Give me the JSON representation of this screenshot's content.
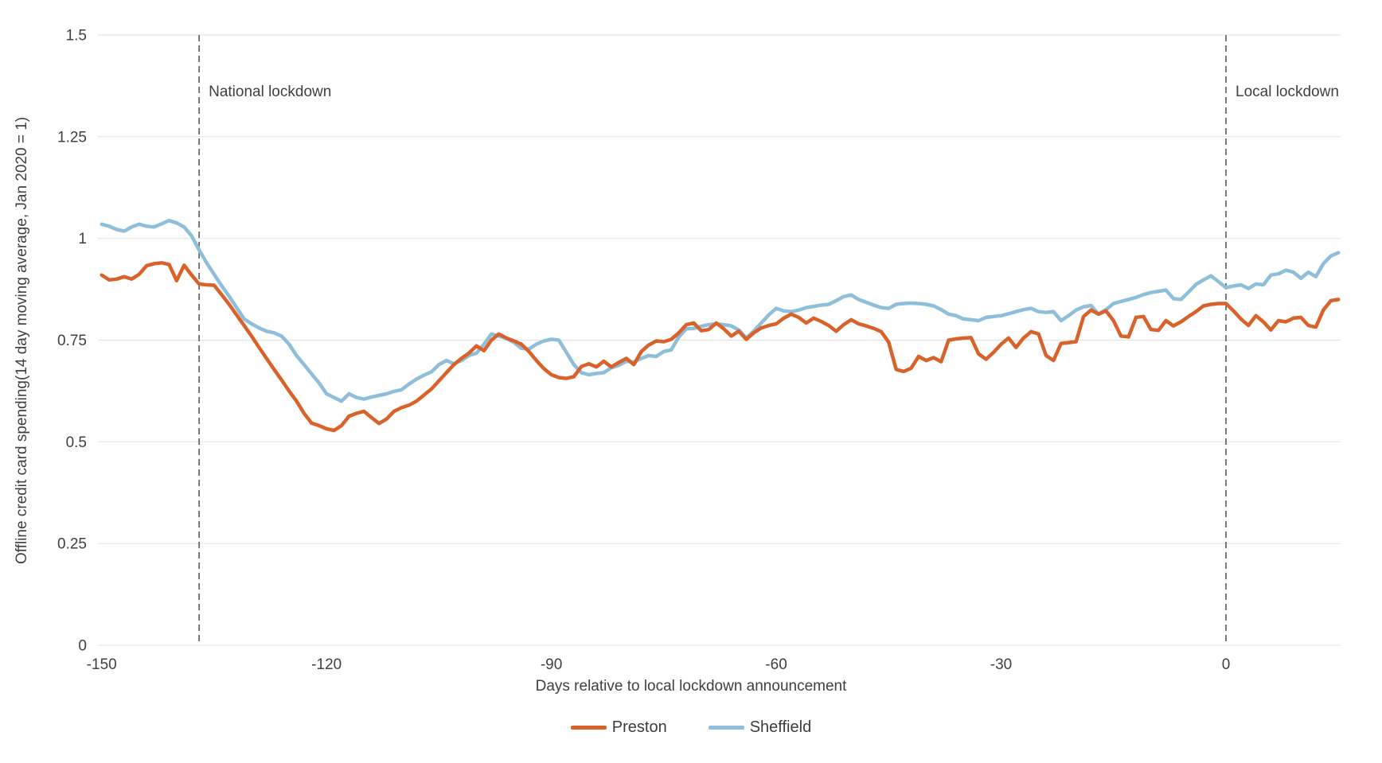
{
  "colors": {
    "preston": "#d9622b",
    "sheffield": "#8ebeda",
    "grid": "#e2e2e2",
    "text": "#404040",
    "annotation_line": "#4d4d4d",
    "background": "#ffffff"
  },
  "chart_data": {
    "type": "line",
    "title": "",
    "xlabel": "Days relative to local lockdown announcement",
    "ylabel_line1": "Offline credit card spending",
    "ylabel_line2": "(14 day moving average, Jan 2020 = 1)",
    "grid": "horizontal",
    "legend_position": "bottom",
    "xlim": [
      -150.5,
      15.3
    ],
    "ylim": [
      0,
      1.5
    ],
    "x_ticks": [
      -150,
      -120,
      -90,
      -60,
      -30,
      0
    ],
    "y_ticks": [
      0,
      0.25,
      0.5,
      0.75,
      1,
      1.25,
      1.5
    ],
    "y_tick_labels": [
      "0",
      "0.25",
      "0.5",
      "0.75",
      "1",
      "1.25",
      "1.5"
    ],
    "x_start": -150,
    "x_step": 1,
    "annotations": [
      {
        "label": "National lockdown",
        "x": -137
      },
      {
        "label": "Local lockdown",
        "x": 0
      }
    ],
    "series": [
      {
        "name": "Preston",
        "color": "#d9622b",
        "values": [
          0.91,
          0.898,
          0.9,
          0.906,
          0.9,
          0.912,
          0.933,
          0.938,
          0.94,
          0.936,
          0.896,
          0.934,
          0.91,
          0.888,
          0.886,
          0.885,
          0.862,
          0.838,
          0.812,
          0.786,
          0.76,
          0.732,
          0.705,
          0.678,
          0.652,
          0.625,
          0.6,
          0.57,
          0.546,
          0.54,
          0.532,
          0.528,
          0.54,
          0.563,
          0.57,
          0.575,
          0.56,
          0.545,
          0.556,
          0.575,
          0.584,
          0.59,
          0.6,
          0.615,
          0.63,
          0.65,
          0.67,
          0.69,
          0.705,
          0.718,
          0.736,
          0.724,
          0.75,
          0.765,
          0.755,
          0.748,
          0.74,
          0.722,
          0.7,
          0.68,
          0.665,
          0.658,
          0.656,
          0.66,
          0.685,
          0.692,
          0.684,
          0.698,
          0.684,
          0.695,
          0.705,
          0.69,
          0.722,
          0.738,
          0.748,
          0.746,
          0.752,
          0.768,
          0.788,
          0.792,
          0.773,
          0.776,
          0.792,
          0.778,
          0.76,
          0.772,
          0.752,
          0.768,
          0.78,
          0.786,
          0.79,
          0.804,
          0.814,
          0.806,
          0.792,
          0.804,
          0.796,
          0.786,
          0.772,
          0.788,
          0.8,
          0.79,
          0.785,
          0.779,
          0.771,
          0.745,
          0.678,
          0.673,
          0.681,
          0.71,
          0.7,
          0.707,
          0.697,
          0.75,
          0.753,
          0.755,
          0.756,
          0.716,
          0.703,
          0.72,
          0.74,
          0.755,
          0.732,
          0.755,
          0.771,
          0.765,
          0.712,
          0.7,
          0.742,
          0.744,
          0.746,
          0.808,
          0.824,
          0.814,
          0.822,
          0.798,
          0.76,
          0.758,
          0.806,
          0.808,
          0.776,
          0.774,
          0.798,
          0.785,
          0.795,
          0.808,
          0.82,
          0.834,
          0.838,
          0.84,
          0.84,
          0.822,
          0.802,
          0.786,
          0.81,
          0.795,
          0.775,
          0.798,
          0.795,
          0.804,
          0.806,
          0.786,
          0.782,
          0.824,
          0.847,
          0.85
        ]
      },
      {
        "name": "Sheffield",
        "color": "#8ebeda",
        "values": [
          1.035,
          1.03,
          1.022,
          1.018,
          1.028,
          1.035,
          1.03,
          1.028,
          1.036,
          1.044,
          1.038,
          1.028,
          1.006,
          0.972,
          0.94,
          0.912,
          0.884,
          0.858,
          0.83,
          0.802,
          0.79,
          0.78,
          0.772,
          0.768,
          0.76,
          0.74,
          0.712,
          0.69,
          0.667,
          0.645,
          0.618,
          0.609,
          0.6,
          0.618,
          0.609,
          0.605,
          0.61,
          0.614,
          0.618,
          0.624,
          0.628,
          0.642,
          0.654,
          0.664,
          0.672,
          0.69,
          0.7,
          0.692,
          0.7,
          0.712,
          0.718,
          0.74,
          0.765,
          0.76,
          0.754,
          0.745,
          0.73,
          0.728,
          0.74,
          0.748,
          0.752,
          0.75,
          0.72,
          0.69,
          0.67,
          0.665,
          0.668,
          0.67,
          0.682,
          0.688,
          0.698,
          0.696,
          0.705,
          0.712,
          0.71,
          0.722,
          0.726,
          0.758,
          0.778,
          0.779,
          0.784,
          0.788,
          0.79,
          0.788,
          0.785,
          0.775,
          0.755,
          0.772,
          0.792,
          0.812,
          0.828,
          0.822,
          0.82,
          0.824,
          0.83,
          0.833,
          0.836,
          0.838,
          0.847,
          0.857,
          0.861,
          0.85,
          0.843,
          0.836,
          0.83,
          0.828,
          0.838,
          0.84,
          0.841,
          0.84,
          0.838,
          0.834,
          0.825,
          0.814,
          0.81,
          0.802,
          0.8,
          0.798,
          0.806,
          0.808,
          0.81,
          0.815,
          0.82,
          0.825,
          0.828,
          0.82,
          0.818,
          0.82,
          0.798,
          0.81,
          0.824,
          0.832,
          0.835,
          0.814,
          0.825,
          0.84,
          0.845,
          0.85,
          0.855,
          0.862,
          0.867,
          0.87,
          0.873,
          0.852,
          0.85,
          0.868,
          0.887,
          0.898,
          0.908,
          0.894,
          0.879,
          0.883,
          0.886,
          0.877,
          0.888,
          0.886,
          0.91,
          0.913,
          0.922,
          0.917,
          0.902,
          0.917,
          0.906,
          0.938,
          0.957,
          0.965
        ]
      }
    ]
  }
}
